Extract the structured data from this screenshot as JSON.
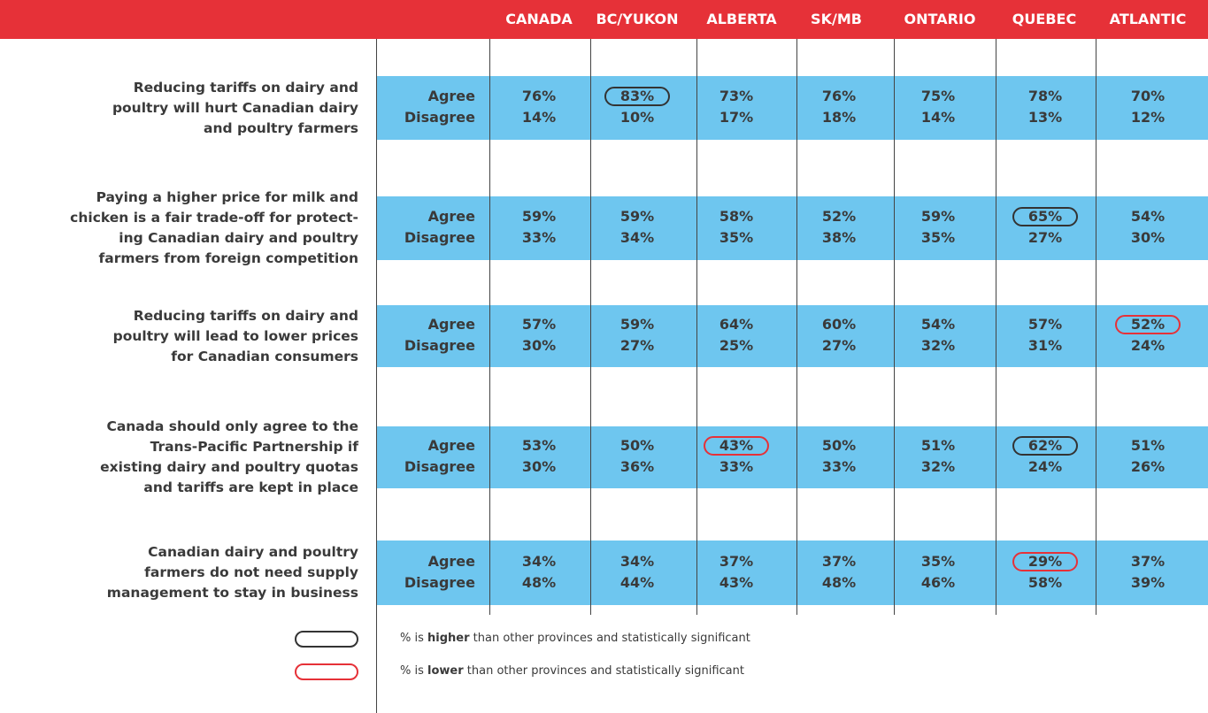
{
  "header": {
    "columns": [
      "CANADA",
      "BC/YUKON",
      "ALBERTA",
      "SK/MB",
      "ONTARIO",
      "QUEBEC",
      "ATLANTIC"
    ]
  },
  "labels": [
    "Agree",
    "Disagree"
  ],
  "table": {
    "rows": [
      {
        "statement": [
          "Reducing tariffs on dairy and",
          "poultry will hurt Canadian dairy",
          "and poultry farmers"
        ],
        "agree": [
          "76%",
          "83%",
          "73%",
          "76%",
          "75%",
          "78%",
          "70%"
        ],
        "disagree": [
          "14%",
          "10%",
          "17%",
          "18%",
          "14%",
          "13%",
          "12%"
        ],
        "highlight": [
          null,
          "higher",
          null,
          null,
          null,
          null,
          null
        ]
      },
      {
        "statement": [
          "Paying a higher price for milk and",
          "chicken is a fair trade-off for protect-",
          "ing Canadian dairy and poultry",
          "farmers from foreign competition"
        ],
        "agree": [
          "59%",
          "59%",
          "58%",
          "52%",
          "59%",
          "65%",
          "54%"
        ],
        "disagree": [
          "33%",
          "34%",
          "35%",
          "38%",
          "35%",
          "27%",
          "30%"
        ],
        "highlight": [
          null,
          null,
          null,
          null,
          null,
          "higher",
          null
        ]
      },
      {
        "statement": [
          "Reducing tariffs on dairy and",
          "poultry will lead to lower prices",
          "for Canadian consumers"
        ],
        "agree": [
          "57%",
          "59%",
          "64%",
          "60%",
          "54%",
          "57%",
          "52%"
        ],
        "disagree": [
          "30%",
          "27%",
          "25%",
          "27%",
          "32%",
          "31%",
          "24%"
        ],
        "highlight": [
          null,
          null,
          null,
          null,
          null,
          null,
          "lower"
        ]
      },
      {
        "statement": [
          "Canada should only agree to the",
          "Trans-Pacific Partnership if",
          "existing dairy and poultry quotas",
          "and tariffs are kept in place"
        ],
        "agree": [
          "53%",
          "50%",
          "43%",
          "50%",
          "51%",
          "62%",
          "51%"
        ],
        "disagree": [
          "30%",
          "36%",
          "33%",
          "33%",
          "32%",
          "24%",
          "26%"
        ],
        "highlight": [
          null,
          null,
          "lower",
          null,
          null,
          "higher",
          null
        ]
      },
      {
        "statement": [
          "Canadian dairy and poultry",
          "farmers do not need supply",
          "management to stay in business"
        ],
        "agree": [
          "34%",
          "34%",
          "37%",
          "37%",
          "35%",
          "29%",
          "37%"
        ],
        "disagree": [
          "48%",
          "44%",
          "43%",
          "48%",
          "46%",
          "58%",
          "39%"
        ],
        "highlight": [
          null,
          null,
          null,
          null,
          null,
          "lower",
          null
        ]
      }
    ]
  },
  "legend": [
    {
      "type": "higher",
      "text": [
        "% is ",
        "higher",
        " than other provinces and statistically significant"
      ]
    },
    {
      "type": "lower",
      "text": [
        "% is ",
        "lower",
        " than other provinces and statistically significant"
      ]
    }
  ]
}
